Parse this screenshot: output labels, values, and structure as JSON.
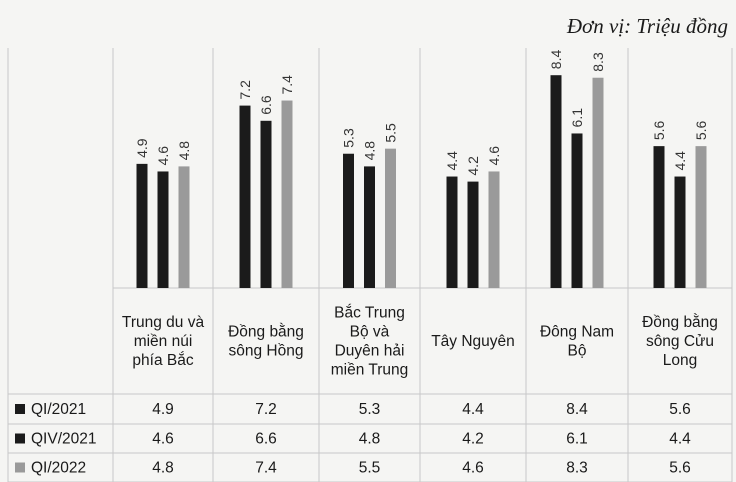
{
  "unit_label": "Đơn vị: Triệu đồng",
  "colors": {
    "QI/2021": "#1b1b1b",
    "QIV/2021": "#1b1b1b",
    "QI/2022": "#9a9a9a",
    "grid": "#c8c8c8"
  },
  "chart_data": {
    "type": "bar",
    "categories": [
      [
        "Trung du và",
        "miền núi",
        "phía Bắc"
      ],
      [
        "Đồng bằng",
        "sông Hồng"
      ],
      [
        "Bắc Trung",
        "Bộ và",
        "Duyên hải",
        "miền Trung"
      ],
      [
        "Tây Nguyên"
      ],
      [
        "Đông Nam",
        "Bộ"
      ],
      [
        "Đồng bằng",
        "sông Cửu",
        "Long"
      ]
    ],
    "series": [
      {
        "name": "QI/2021",
        "values": [
          4.9,
          7.2,
          5.3,
          4.4,
          8.4,
          5.6
        ],
        "labels": [
          "4.9",
          "7.2",
          "5.3",
          "4.4",
          "8.4",
          "5.6"
        ]
      },
      {
        "name": "QIV/2021",
        "values": [
          4.6,
          6.6,
          4.8,
          4.2,
          6.1,
          4.4
        ],
        "labels": [
          "4.6",
          "6.6",
          "4.8",
          "4.2",
          "6.1",
          "4.4"
        ]
      },
      {
        "name": "QI/2022",
        "values": [
          4.8,
          7.4,
          5.5,
          4.6,
          8.3,
          5.6
        ],
        "labels": [
          "4.8",
          "7.4",
          "5.5",
          "4.6",
          "8.3",
          "5.6"
        ]
      }
    ],
    "ylim": [
      0,
      9
    ],
    "legend": "left data table"
  }
}
